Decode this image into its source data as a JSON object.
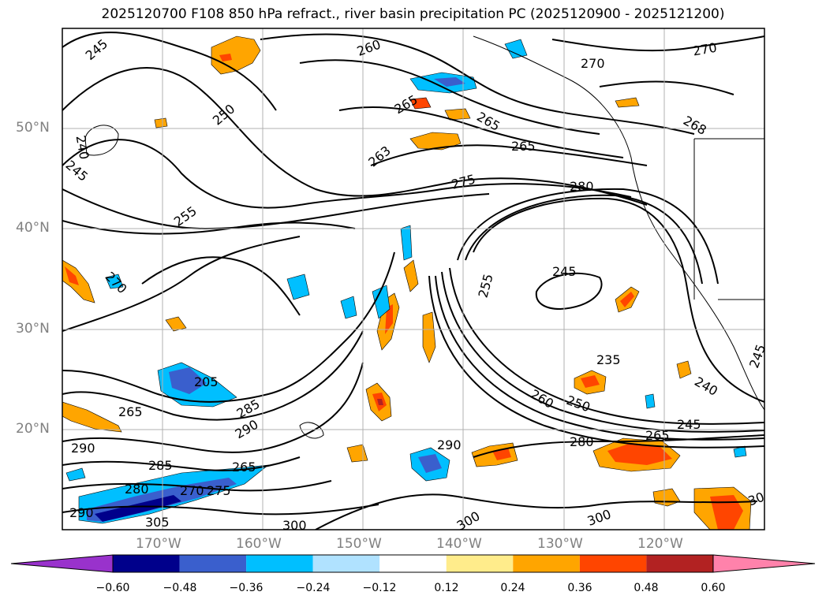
{
  "title": "2025120700 F108 850 hPa refract., river basin precipitation PC (2025120900 - 2025121200)",
  "map": {
    "lat_labels": [
      "50°N",
      "40°N",
      "30°N",
      "20°N"
    ],
    "lon_labels": [
      "170°W",
      "160°W",
      "150°W",
      "140°W",
      "130°W",
      "120°W"
    ],
    "contour_labels": [
      "245",
      "260",
      "270",
      "270",
      "250",
      "265",
      "265",
      "268",
      "240",
      "265",
      "245",
      "263",
      "275",
      "280",
      "255",
      "255",
      "245",
      "270",
      "235",
      "240",
      "260",
      "250",
      "205",
      "265",
      "285",
      "290",
      "245",
      "290",
      "280",
      "265",
      "290",
      "285",
      "265",
      "270",
      "275",
      "280",
      "290",
      "305",
      "300",
      "300",
      "300",
      "30",
      "245"
    ]
  },
  "colorbar": {
    "colors": [
      "#9932cc",
      "#00008b",
      "#3a5fcd",
      "#00bfff",
      "#b0e2ff",
      "#ffffff",
      "#ffec8b",
      "#ffa500",
      "#ff4500",
      "#b22222",
      "#ff82ab"
    ],
    "tick_labels": [
      "−0.60",
      "−0.48",
      "−0.36",
      "−0.24",
      "−0.12",
      "0.12",
      "0.24",
      "0.36",
      "0.48",
      "0.60"
    ]
  }
}
